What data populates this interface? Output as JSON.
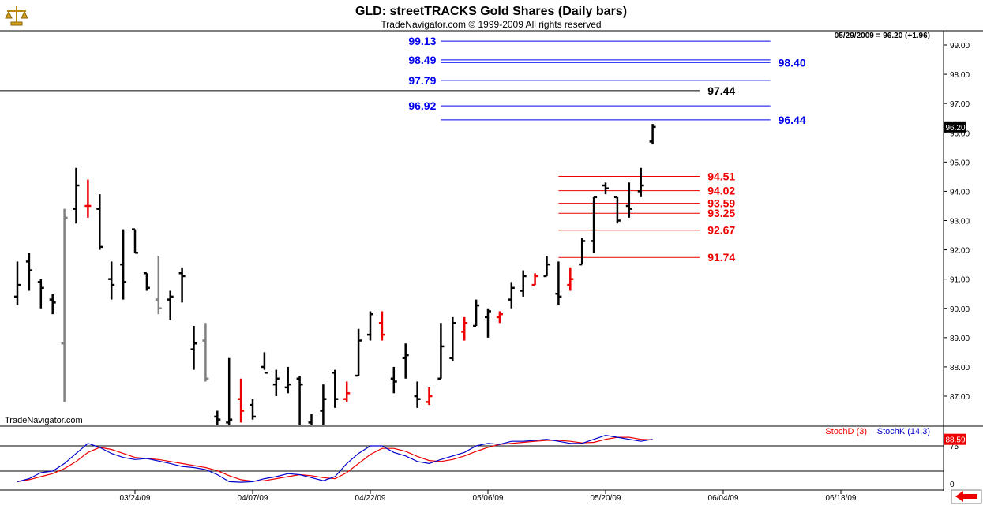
{
  "header": {
    "title": "GLD:  streetTRACKS Gold Shares  (Daily bars)",
    "subtitle": "TradeNavigator.com © 1999-2009 All rights reserved",
    "last_quote": "05/29/2009 = 96.20 (+1.96)",
    "watermark": "TradeNavigator.com"
  },
  "chart_data": {
    "type": "bar",
    "subtype": "ohlc",
    "symbol": "GLD",
    "title": "GLD:  streetTRACKS Gold Shares  (Daily bars)",
    "last_price_label": "96.20",
    "price_axis": {
      "ylim": [
        86.4,
        99.4
      ],
      "ticks": [
        "87.00",
        "88.00",
        "89.00",
        "90.00",
        "91.00",
        "92.00",
        "93.00",
        "94.00",
        "95.00",
        "96.00",
        "97.00",
        "98.00",
        "99.00"
      ],
      "tick_values": [
        87,
        88,
        89,
        90,
        91,
        92,
        93,
        94,
        95,
        96,
        97,
        98,
        99
      ]
    },
    "x_axis": {
      "labels": [
        {
          "label": "03/24/09",
          "day": 10
        },
        {
          "label": "04/07/09",
          "day": 20
        },
        {
          "label": "04/22/09",
          "day": 30
        },
        {
          "label": "05/06/09",
          "day": 40
        },
        {
          "label": "05/20/09",
          "day": 50
        },
        {
          "label": "06/04/09",
          "day": 60
        },
        {
          "label": "06/18/09",
          "day": 70
        }
      ]
    },
    "bars": [
      {
        "d": 0,
        "o": 90.4,
        "h": 91.6,
        "l": 90.1,
        "c": 90.8,
        "color": "black"
      },
      {
        "d": 1,
        "o": 91.6,
        "h": 91.9,
        "l": 90.6,
        "c": 91.3,
        "color": "black"
      },
      {
        "d": 2,
        "o": 90.9,
        "h": 91.0,
        "l": 90.0,
        "c": 90.7,
        "color": "black"
      },
      {
        "d": 3,
        "o": 90.3,
        "h": 90.5,
        "l": 89.8,
        "c": 90.2,
        "color": "black"
      },
      {
        "d": 4,
        "o": 88.8,
        "h": 93.4,
        "l": 86.8,
        "c": 93.1,
        "color": "gray"
      },
      {
        "d": 5,
        "o": 93.4,
        "h": 94.8,
        "l": 92.9,
        "c": 94.2,
        "color": "black"
      },
      {
        "d": 6,
        "o": 93.5,
        "h": 94.4,
        "l": 93.1,
        "c": 93.5,
        "color": "red"
      },
      {
        "d": 7,
        "o": 93.4,
        "h": 93.9,
        "l": 92.0,
        "c": 92.1,
        "color": "black"
      },
      {
        "d": 8,
        "o": 91.0,
        "h": 91.6,
        "l": 90.3,
        "c": 90.8,
        "color": "black"
      },
      {
        "d": 9,
        "o": 91.5,
        "h": 92.7,
        "l": 90.3,
        "c": 90.9,
        "color": "black"
      },
      {
        "d": 10,
        "o": 92.7,
        "h": 92.7,
        "l": 91.9,
        "c": 91.9,
        "color": "black"
      },
      {
        "d": 11,
        "o": 91.2,
        "h": 91.2,
        "l": 90.6,
        "c": 90.7,
        "color": "black"
      },
      {
        "d": 12,
        "o": 90.3,
        "h": 91.8,
        "l": 89.8,
        "c": 90.0,
        "color": "gray"
      },
      {
        "d": 13,
        "o": 90.3,
        "h": 90.6,
        "l": 89.6,
        "c": 90.4,
        "color": "black"
      },
      {
        "d": 14,
        "o": 91.2,
        "h": 91.4,
        "l": 90.2,
        "c": 91.1,
        "color": "black"
      },
      {
        "d": 15,
        "o": 88.6,
        "h": 89.4,
        "l": 87.9,
        "c": 88.8,
        "color": "black"
      },
      {
        "d": 16,
        "o": 88.9,
        "h": 89.5,
        "l": 87.5,
        "c": 87.6,
        "color": "gray"
      },
      {
        "d": 17,
        "o": 86.3,
        "h": 86.5,
        "l": 85.9,
        "c": 86.2,
        "color": "black"
      },
      {
        "d": 18,
        "o": 86.1,
        "h": 88.3,
        "l": 86.0,
        "c": 86.2,
        "color": "black"
      },
      {
        "d": 19,
        "o": 86.9,
        "h": 87.6,
        "l": 86.1,
        "c": 86.5,
        "color": "red"
      },
      {
        "d": 20,
        "o": 86.7,
        "h": 86.9,
        "l": 86.2,
        "c": 86.3,
        "color": "black"
      },
      {
        "d": 21,
        "o": 88.0,
        "h": 88.5,
        "l": 87.9,
        "c": 87.8,
        "color": "black"
      },
      {
        "d": 22,
        "o": 87.4,
        "h": 87.9,
        "l": 87.0,
        "c": 87.6,
        "color": "black"
      },
      {
        "d": 23,
        "o": 87.3,
        "h": 88.0,
        "l": 87.1,
        "c": 87.4,
        "color": "black"
      },
      {
        "d": 24,
        "o": 87.6,
        "h": 87.7,
        "l": 86.0,
        "c": 87.4,
        "color": "black"
      },
      {
        "d": 25,
        "o": 86.1,
        "h": 86.4,
        "l": 85.9,
        "c": 86.0,
        "color": "black"
      },
      {
        "d": 26,
        "o": 86.5,
        "h": 87.4,
        "l": 86.0,
        "c": 86.9,
        "color": "black"
      },
      {
        "d": 27,
        "o": 87.8,
        "h": 87.9,
        "l": 86.6,
        "c": 86.9,
        "color": "black"
      },
      {
        "d": 28,
        "o": 86.9,
        "h": 87.5,
        "l": 86.8,
        "c": 87.1,
        "color": "red"
      },
      {
        "d": 29,
        "o": 87.7,
        "h": 89.3,
        "l": 87.7,
        "c": 88.9,
        "color": "black"
      },
      {
        "d": 30,
        "o": 89.1,
        "h": 89.9,
        "l": 88.9,
        "c": 89.8,
        "color": "black"
      },
      {
        "d": 31,
        "o": 89.5,
        "h": 89.9,
        "l": 88.9,
        "c": 89.1,
        "color": "red"
      },
      {
        "d": 32,
        "o": 87.6,
        "h": 88.0,
        "l": 87.1,
        "c": 87.5,
        "color": "black"
      },
      {
        "d": 33,
        "o": 88.3,
        "h": 88.8,
        "l": 87.6,
        "c": 88.4,
        "color": "black"
      },
      {
        "d": 34,
        "o": 87.0,
        "h": 87.5,
        "l": 86.6,
        "c": 86.9,
        "color": "black"
      },
      {
        "d": 35,
        "o": 86.8,
        "h": 87.3,
        "l": 86.7,
        "c": 87.0,
        "color": "red"
      },
      {
        "d": 36,
        "o": 87.6,
        "h": 89.5,
        "l": 87.6,
        "c": 88.7,
        "color": "black"
      },
      {
        "d": 37,
        "o": 88.3,
        "h": 89.7,
        "l": 88.2,
        "c": 89.5,
        "color": "black"
      },
      {
        "d": 38,
        "o": 89.2,
        "h": 89.7,
        "l": 88.9,
        "c": 89.5,
        "color": "red"
      },
      {
        "d": 39,
        "o": 89.4,
        "h": 90.3,
        "l": 89.4,
        "c": 90.1,
        "color": "black"
      },
      {
        "d": 40,
        "o": 89.7,
        "h": 90.0,
        "l": 89.0,
        "c": 89.9,
        "color": "black"
      },
      {
        "d": 41,
        "o": 89.7,
        "h": 89.9,
        "l": 89.5,
        "c": 89.8,
        "color": "red"
      },
      {
        "d": 42,
        "o": 90.3,
        "h": 90.9,
        "l": 90.0,
        "c": 90.7,
        "color": "black"
      },
      {
        "d": 43,
        "o": 90.6,
        "h": 91.3,
        "l": 90.4,
        "c": 91.1,
        "color": "black"
      },
      {
        "d": 44,
        "o": 90.8,
        "h": 91.2,
        "l": 90.8,
        "c": 91.1,
        "color": "red"
      },
      {
        "d": 45,
        "o": 91.1,
        "h": 91.8,
        "l": 91.1,
        "c": 91.5,
        "color": "black"
      },
      {
        "d": 46,
        "o": 90.5,
        "h": 91.6,
        "l": 90.1,
        "c": 90.4,
        "color": "black"
      },
      {
        "d": 47,
        "o": 90.8,
        "h": 91.4,
        "l": 90.6,
        "c": 91.0,
        "color": "red"
      },
      {
        "d": 48,
        "o": 91.5,
        "h": 92.4,
        "l": 91.5,
        "c": 92.3,
        "color": "black"
      },
      {
        "d": 49,
        "o": 92.3,
        "h": 93.8,
        "l": 91.9,
        "c": 93.8,
        "color": "black"
      },
      {
        "d": 50,
        "o": 94.2,
        "h": 94.3,
        "l": 93.9,
        "c": 94.1,
        "color": "black"
      },
      {
        "d": 51,
        "o": 93.8,
        "h": 93.8,
        "l": 92.9,
        "c": 93.0,
        "color": "black"
      },
      {
        "d": 52,
        "o": 93.5,
        "h": 94.3,
        "l": 93.1,
        "c": 93.4,
        "color": "black"
      },
      {
        "d": 53,
        "o": 94.0,
        "h": 94.8,
        "l": 93.8,
        "c": 94.2,
        "color": "black"
      },
      {
        "d": 54,
        "o": 95.7,
        "h": 96.3,
        "l": 95.6,
        "c": 96.2,
        "color": "black"
      }
    ],
    "levels": [
      {
        "value": 99.13,
        "label": "99.13",
        "color": "#0000ee",
        "label_side": "left",
        "x_from_day": 36,
        "x_to_day": 64
      },
      {
        "value": 98.49,
        "label": "98.49",
        "color": "#0000ee",
        "label_side": "left",
        "x_from_day": 36,
        "x_to_day": 64
      },
      {
        "value": 98.4,
        "label": "98.40",
        "color": "#0000ee",
        "label_side": "right",
        "x_from_day": 36,
        "x_to_day": 64
      },
      {
        "value": 97.79,
        "label": "97.79",
        "color": "#0000ee",
        "label_side": "left",
        "x_from_day": 36,
        "x_to_day": 64
      },
      {
        "value": 97.44,
        "label": "97.44",
        "color": "#000000",
        "label_side": "right",
        "x_from_day": -1,
        "x_to_day": 58
      },
      {
        "value": 96.92,
        "label": "96.92",
        "color": "#0000ee",
        "label_side": "left",
        "x_from_day": 36,
        "x_to_day": 64
      },
      {
        "value": 96.44,
        "label": "96.44",
        "color": "#0000ee",
        "label_side": "right",
        "x_from_day": 36,
        "x_to_day": 64
      },
      {
        "value": 94.51,
        "label": "94.51",
        "color": "#ee0000",
        "label_side": "right",
        "x_from_day": 46,
        "x_to_day": 58
      },
      {
        "value": 94.02,
        "label": "94.02",
        "color": "#ee0000",
        "label_side": "right",
        "x_from_day": 46,
        "x_to_day": 58
      },
      {
        "value": 93.59,
        "label": "93.59",
        "color": "#ee0000",
        "label_side": "right",
        "x_from_day": 46,
        "x_to_day": 58
      },
      {
        "value": 93.25,
        "label": "93.25",
        "color": "#ee0000",
        "label_side": "right",
        "x_from_day": 46,
        "x_to_day": 58
      },
      {
        "value": 92.67,
        "label": "92.67",
        "color": "#ee0000",
        "label_side": "right",
        "x_from_day": 46,
        "x_to_day": 58
      },
      {
        "value": 91.74,
        "label": "91.74",
        "color": "#ee0000",
        "label_side": "right",
        "x_from_day": 46,
        "x_to_day": 58
      }
    ],
    "stochastic": {
      "legend": [
        {
          "name": "StochD (3)",
          "color": "#ee0000"
        },
        {
          "name": "StochK (14,3)",
          "color": "#0000cc"
        }
      ],
      "ylim": [
        0,
        100
      ],
      "reference_lines": [
        75,
        25
      ],
      "ticks": [
        {
          "label": "75",
          "value": 75
        },
        {
          "label": "0",
          "value": 0
        }
      ],
      "last_value_label": "88.59",
      "stoch_k": [
        {
          "d": 0,
          "v": 4
        },
        {
          "d": 1,
          "v": 10
        },
        {
          "d": 2,
          "v": 22
        },
        {
          "d": 3,
          "v": 25
        },
        {
          "d": 4,
          "v": 40
        },
        {
          "d": 5,
          "v": 60
        },
        {
          "d": 6,
          "v": 80
        },
        {
          "d": 7,
          "v": 72
        },
        {
          "d": 8,
          "v": 60
        },
        {
          "d": 9,
          "v": 52
        },
        {
          "d": 10,
          "v": 48
        },
        {
          "d": 11,
          "v": 50
        },
        {
          "d": 12,
          "v": 45
        },
        {
          "d": 13,
          "v": 40
        },
        {
          "d": 14,
          "v": 34
        },
        {
          "d": 15,
          "v": 32
        },
        {
          "d": 16,
          "v": 28
        },
        {
          "d": 17,
          "v": 18
        },
        {
          "d": 18,
          "v": 4
        },
        {
          "d": 19,
          "v": 3
        },
        {
          "d": 20,
          "v": 4
        },
        {
          "d": 21,
          "v": 10
        },
        {
          "d": 22,
          "v": 14
        },
        {
          "d": 23,
          "v": 20
        },
        {
          "d": 24,
          "v": 18
        },
        {
          "d": 25,
          "v": 12
        },
        {
          "d": 26,
          "v": 6
        },
        {
          "d": 27,
          "v": 14
        },
        {
          "d": 28,
          "v": 40
        },
        {
          "d": 29,
          "v": 60
        },
        {
          "d": 30,
          "v": 75
        },
        {
          "d": 31,
          "v": 75
        },
        {
          "d": 32,
          "v": 62
        },
        {
          "d": 33,
          "v": 55
        },
        {
          "d": 34,
          "v": 44
        },
        {
          "d": 35,
          "v": 40
        },
        {
          "d": 36,
          "v": 48
        },
        {
          "d": 37,
          "v": 55
        },
        {
          "d": 38,
          "v": 62
        },
        {
          "d": 39,
          "v": 75
        },
        {
          "d": 40,
          "v": 80
        },
        {
          "d": 41,
          "v": 78
        },
        {
          "d": 42,
          "v": 84
        },
        {
          "d": 43,
          "v": 84
        },
        {
          "d": 44,
          "v": 86
        },
        {
          "d": 45,
          "v": 88
        },
        {
          "d": 46,
          "v": 84
        },
        {
          "d": 47,
          "v": 80
        },
        {
          "d": 48,
          "v": 80
        },
        {
          "d": 49,
          "v": 88
        },
        {
          "d": 50,
          "v": 96
        },
        {
          "d": 51,
          "v": 92
        },
        {
          "d": 52,
          "v": 88
        },
        {
          "d": 53,
          "v": 84
        },
        {
          "d": 54,
          "v": 88
        }
      ],
      "stoch_d": [
        {
          "d": 0,
          "v": 4
        },
        {
          "d": 1,
          "v": 8
        },
        {
          "d": 2,
          "v": 14
        },
        {
          "d": 3,
          "v": 20
        },
        {
          "d": 4,
          "v": 30
        },
        {
          "d": 5,
          "v": 44
        },
        {
          "d": 6,
          "v": 62
        },
        {
          "d": 7,
          "v": 72
        },
        {
          "d": 8,
          "v": 68
        },
        {
          "d": 9,
          "v": 60
        },
        {
          "d": 10,
          "v": 52
        },
        {
          "d": 11,
          "v": 50
        },
        {
          "d": 12,
          "v": 48
        },
        {
          "d": 13,
          "v": 44
        },
        {
          "d": 14,
          "v": 40
        },
        {
          "d": 15,
          "v": 36
        },
        {
          "d": 16,
          "v": 32
        },
        {
          "d": 17,
          "v": 26
        },
        {
          "d": 18,
          "v": 16
        },
        {
          "d": 19,
          "v": 8
        },
        {
          "d": 20,
          "v": 5
        },
        {
          "d": 21,
          "v": 6
        },
        {
          "d": 22,
          "v": 10
        },
        {
          "d": 23,
          "v": 14
        },
        {
          "d": 24,
          "v": 18
        },
        {
          "d": 25,
          "v": 16
        },
        {
          "d": 26,
          "v": 12
        },
        {
          "d": 27,
          "v": 10
        },
        {
          "d": 28,
          "v": 22
        },
        {
          "d": 29,
          "v": 40
        },
        {
          "d": 30,
          "v": 58
        },
        {
          "d": 31,
          "v": 70
        },
        {
          "d": 32,
          "v": 70
        },
        {
          "d": 33,
          "v": 64
        },
        {
          "d": 34,
          "v": 54
        },
        {
          "d": 35,
          "v": 46
        },
        {
          "d": 36,
          "v": 44
        },
        {
          "d": 37,
          "v": 48
        },
        {
          "d": 38,
          "v": 55
        },
        {
          "d": 39,
          "v": 64
        },
        {
          "d": 40,
          "v": 72
        },
        {
          "d": 41,
          "v": 78
        },
        {
          "d": 42,
          "v": 80
        },
        {
          "d": 43,
          "v": 82
        },
        {
          "d": 44,
          "v": 84
        },
        {
          "d": 45,
          "v": 86
        },
        {
          "d": 46,
          "v": 86
        },
        {
          "d": 47,
          "v": 84
        },
        {
          "d": 48,
          "v": 81
        },
        {
          "d": 49,
          "v": 82
        },
        {
          "d": 50,
          "v": 88
        },
        {
          "d": 51,
          "v": 92
        },
        {
          "d": 52,
          "v": 92
        },
        {
          "d": 53,
          "v": 88
        },
        {
          "d": 54,
          "v": 87
        }
      ]
    }
  },
  "colors": {
    "background": "#ffffff",
    "axis_line": "#000000",
    "grid": "#c0c0c0",
    "price_label_bg": "#000000",
    "stoch_label_bg": "#ee0000",
    "scroll_arrow": "#ee0000"
  },
  "icons": {
    "logo": "scales-logo-icon",
    "scroll": "red-left-arrow-icon"
  }
}
